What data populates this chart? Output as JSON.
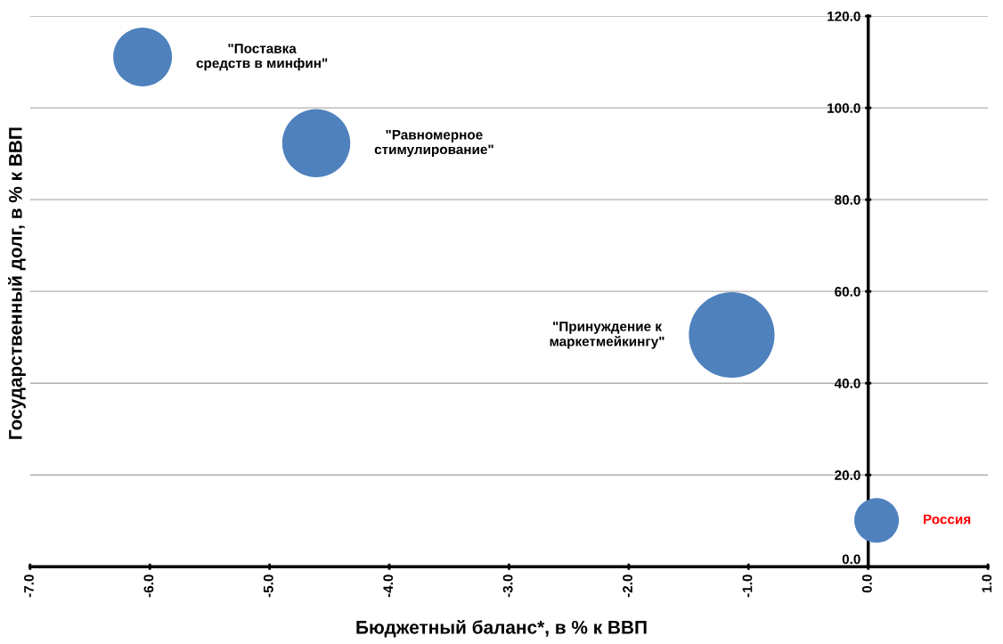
{
  "chart_data": {
    "type": "bubble",
    "xlabel": "Бюджетный баланс*, в % к ВВП",
    "ylabel": "Государственный долг, в % к ВВП",
    "series": [
      {
        "name": "\"Поставка средств в минфин\"",
        "color": "#4f81bd",
        "x": [
          -6.06
        ],
        "values": [
          111.1
        ],
        "sizes": [
          0.47
        ]
      },
      {
        "name": "\"Равномерное стимулирование\"",
        "color": "#4f81bd",
        "x": [
          -4.61
        ],
        "values": [
          92.3
        ],
        "sizes": [
          0.63
        ]
      },
      {
        "name": "\"Принуждение к маркетмейкингу\"",
        "color": "#4f81bd",
        "x": [
          -1.14
        ],
        "values": [
          50.5
        ],
        "sizes": [
          1
        ]
      },
      {
        "name": "Россия",
        "color": "#4f81bd",
        "x": [
          0.07
        ],
        "values": [
          10.1
        ],
        "sizes": [
          0.27
        ]
      }
    ],
    "xlim": [
      -7,
      1
    ],
    "xticks": [
      {
        "value": -7,
        "label": "-7.0"
      },
      {
        "value": -6,
        "label": "-6.0"
      },
      {
        "value": -5,
        "label": "-5.0"
      },
      {
        "value": -4,
        "label": "-4.0"
      },
      {
        "value": -3,
        "label": "-3.0"
      },
      {
        "value": -2,
        "label": "-2.0"
      },
      {
        "value": -1,
        "label": "-1.0"
      },
      {
        "value": 0,
        "label": "0.0"
      },
      {
        "value": 1,
        "label": "1.0"
      }
    ],
    "ylim": [
      0,
      120
    ],
    "yticks": [
      {
        "value": 0,
        "label": "0.0"
      },
      {
        "value": 20,
        "label": "20.0"
      },
      {
        "value": 40,
        "label": "40.0"
      },
      {
        "value": 60,
        "label": "60.0"
      },
      {
        "value": 80,
        "label": "80.0"
      },
      {
        "value": 100,
        "label": "100.0"
      },
      {
        "value": 120,
        "label": "120.0"
      }
    ],
    "grid": "y",
    "legend": false
  }
}
